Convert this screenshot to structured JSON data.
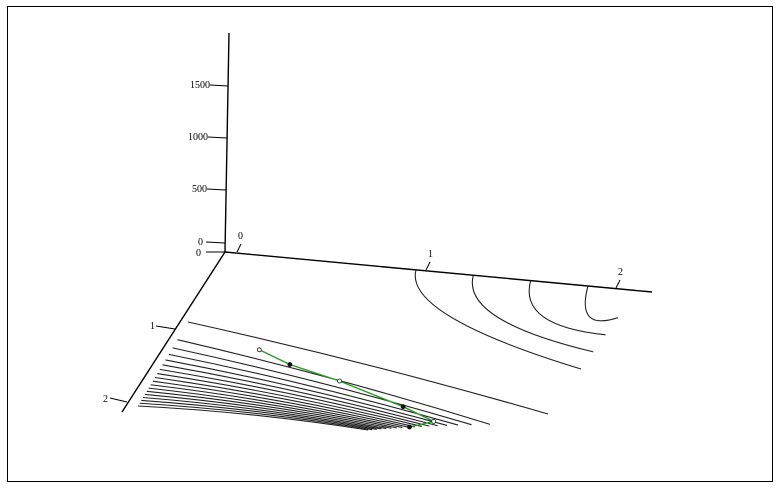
{
  "chart_data": {
    "type": "surface3d",
    "title": "",
    "axes": {
      "x": {
        "ticks": [
          "0",
          "1",
          "2"
        ]
      },
      "y": {
        "ticks": [
          "0",
          "1",
          "2"
        ]
      },
      "z": {
        "ticks": [
          "0",
          "500",
          "1000",
          "1500"
        ]
      }
    },
    "contours_xz": [
      {
        "level": 1.0
      },
      {
        "level": 1.3
      },
      {
        "level": 1.6
      },
      {
        "level": 1.9
      }
    ],
    "contours_xy_count": 18,
    "path": {
      "color": "#2a9a2a",
      "points": [
        [
          0.5,
          1.2
        ],
        [
          0.7,
          1.35
        ],
        [
          1.0,
          1.5
        ],
        [
          1.4,
          1.75
        ],
        [
          1.6,
          1.9
        ],
        [
          1.5,
          2.0
        ]
      ]
    },
    "colors": {
      "axes": "#000000",
      "contour": "#222222",
      "path": "#2a9a2a"
    }
  }
}
